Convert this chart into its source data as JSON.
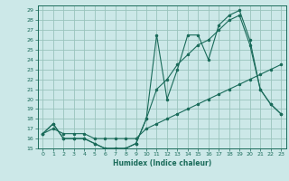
{
  "xlabel": "Humidex (Indice chaleur)",
  "bg_color": "#cce8e8",
  "line_color": "#1a6b5a",
  "grid_color": "#99c4bc",
  "xlim": [
    -0.5,
    23.5
  ],
  "ylim": [
    15,
    29.5
  ],
  "xticks": [
    0,
    1,
    2,
    3,
    4,
    5,
    6,
    7,
    8,
    9,
    10,
    11,
    12,
    13,
    14,
    15,
    16,
    17,
    18,
    19,
    20,
    21,
    22,
    23
  ],
  "yticks": [
    15,
    16,
    17,
    18,
    19,
    20,
    21,
    22,
    23,
    24,
    25,
    26,
    27,
    28,
    29
  ],
  "series": [
    {
      "x": [
        0,
        1,
        2,
        3,
        4,
        5,
        6,
        7,
        8,
        9,
        10,
        11,
        12,
        13,
        14,
        15,
        16,
        17,
        18,
        19,
        20,
        21,
        22,
        23
      ],
      "y": [
        16.5,
        17.5,
        16.0,
        16.0,
        16.0,
        15.5,
        15.0,
        15.0,
        15.0,
        15.5,
        18.0,
        26.5,
        20.0,
        23.0,
        26.5,
        26.5,
        24.0,
        27.5,
        28.5,
        29.0,
        26.0,
        21.0,
        19.5,
        18.5
      ]
    },
    {
      "x": [
        0,
        1,
        2,
        3,
        4,
        5,
        6,
        7,
        8,
        9,
        10,
        11,
        12,
        13,
        14,
        15,
        16,
        17,
        18,
        19,
        20,
        21,
        22,
        23
      ],
      "y": [
        16.5,
        17.5,
        16.0,
        16.0,
        16.0,
        15.5,
        15.0,
        15.0,
        15.0,
        15.5,
        18.0,
        21.0,
        22.0,
        23.5,
        24.5,
        25.5,
        26.0,
        27.0,
        28.0,
        28.5,
        25.5,
        21.0,
        19.5,
        18.5
      ]
    },
    {
      "x": [
        0,
        1,
        2,
        3,
        4,
        5,
        6,
        7,
        8,
        9,
        10,
        11,
        12,
        13,
        14,
        15,
        16,
        17,
        18,
        19,
        20,
        21,
        22,
        23
      ],
      "y": [
        16.5,
        17.0,
        16.5,
        16.5,
        16.5,
        16.0,
        16.0,
        16.0,
        16.0,
        16.0,
        17.0,
        17.5,
        18.0,
        18.5,
        19.0,
        19.5,
        20.0,
        20.5,
        21.0,
        21.5,
        22.0,
        22.5,
        23.0,
        23.5
      ]
    }
  ]
}
